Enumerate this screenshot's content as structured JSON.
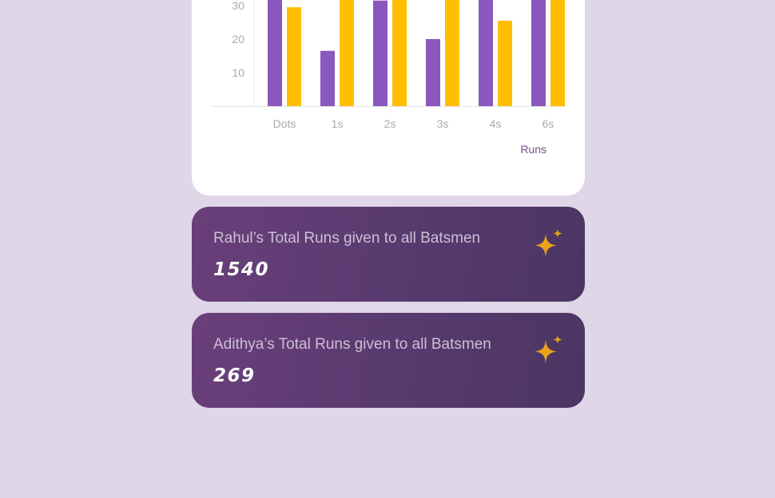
{
  "chart_data": {
    "type": "bar",
    "categories": [
      "Dots",
      "1s",
      "2s",
      "3s",
      "4s",
      "6s"
    ],
    "series": [
      {
        "values": [
          42,
          16.5,
          31.5,
          20,
          38,
          38
        ],
        "color": "#8a57bd"
      },
      {
        "values": [
          29.5,
          40,
          40,
          40,
          25.5,
          40
        ],
        "color": "#ffbf00"
      }
    ],
    "y_ticks": [
      "10",
      "20",
      "30"
    ],
    "ylim": [
      0,
      40
    ],
    "xlabel": "Runs",
    "grid": false
  },
  "cards": [
    {
      "title": "Rahul’s Total Runs given to all Batsmen",
      "value": "1540",
      "icon": "sparkle-icon",
      "accent": "#e8a317"
    },
    {
      "title": "Adithya’s Total Runs given to all Batsmen",
      "value": "269",
      "icon": "sparkle-icon",
      "accent": "#e8a317"
    }
  ]
}
